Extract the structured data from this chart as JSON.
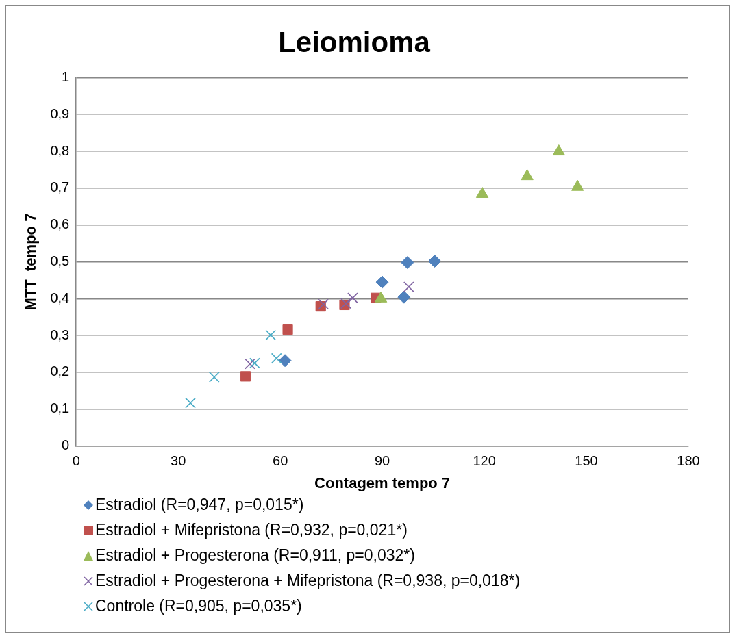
{
  "chart_data": {
    "type": "scatter",
    "title": "Leiomioma",
    "xlabel": "Contagem tempo 7",
    "ylabel": "MTT  tempo 7",
    "xlim": [
      0,
      180
    ],
    "xticks": [
      0,
      30,
      60,
      90,
      120,
      150,
      180
    ],
    "ylim": [
      0,
      1
    ],
    "yticks": [
      0,
      {
        "value": 0.1,
        "label": "0,1"
      },
      {
        "value": 0.2,
        "label": "0,2"
      },
      {
        "value": 0.3,
        "label": "0,3"
      },
      {
        "value": 0.4,
        "label": "0,4"
      },
      {
        "value": 0.5,
        "label": "0,5"
      },
      {
        "value": 0.6,
        "label": "0,6"
      },
      {
        "value": 0.7,
        "label": "0,7"
      },
      {
        "value": 0.8,
        "label": "0,8"
      },
      {
        "value": 0.9,
        "label": "0,9"
      },
      1
    ],
    "grid": "y",
    "legend": "bottom",
    "series": [
      {
        "name": "Estradiol (R=0,947, p=0,015*)",
        "color": "#4f81bd",
        "marker": "diamond",
        "x": [
          61.4,
          90,
          97.4,
          105.4,
          96.4
        ],
        "values": [
          0.232,
          0.445,
          0.498,
          0.502,
          0.404
        ]
      },
      {
        "name": "Estradiol + Mifepristona (R=0,932, p=0,021*)",
        "color": "#c0504d",
        "marker": "square",
        "x": [
          49.8,
          62.2,
          71.9,
          78.9,
          88.1
        ],
        "values": [
          0.189,
          0.316,
          0.379,
          0.383,
          0.402
        ]
      },
      {
        "name": "Estradiol + Progesterona (R=0,911, p=0,032*)",
        "color": "#9bbb59",
        "marker": "triangle",
        "x": [
          119.4,
          132.6,
          141.9,
          147.4,
          89.6
        ],
        "values": [
          0.684,
          0.732,
          0.799,
          0.703,
          0.4
        ]
      },
      {
        "name": "Estradiol + Progesterona + Mifepristona (R=0,938, p=0,018*)",
        "color": "#8064a2",
        "marker": "cross",
        "x": [
          51.1,
          72.7,
          79.3,
          81.3,
          97.8
        ],
        "values": [
          0.223,
          0.385,
          0.387,
          0.402,
          0.432
        ]
      },
      {
        "name": "Controle (R=0,905, p=0,035*)",
        "color": "#4bacc6",
        "marker": "cross",
        "x": [
          33.6,
          40.6,
          52.5,
          57.2,
          58.9
        ],
        "values": [
          0.117,
          0.187,
          0.225,
          0.301,
          0.238
        ]
      }
    ]
  }
}
